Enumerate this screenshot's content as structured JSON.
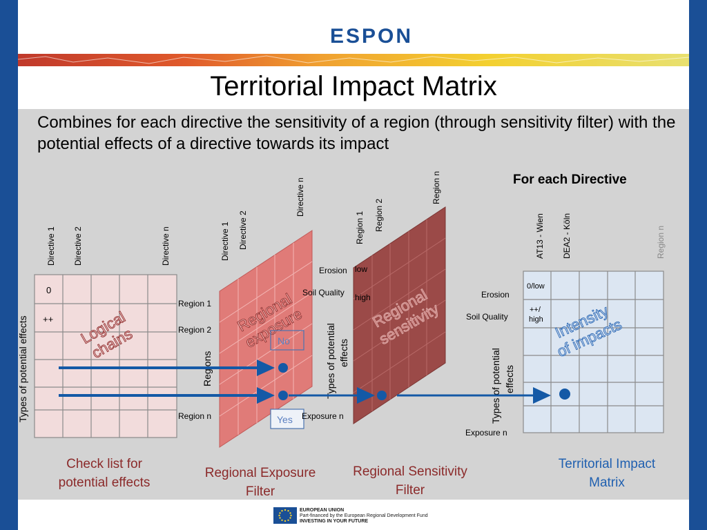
{
  "header": {
    "logo_text": "ESPON"
  },
  "title": "Territorial Impact Matrix",
  "subtitle": "Combines for each directive the sensitivity of a region (through sensitivity filter) with the potential effects of a directive towards its impact",
  "checklist": {
    "col_headers": [
      "Directive 1",
      "Directive 2",
      "Directive n"
    ],
    "row_label": "Types of potential effects",
    "cells": [
      "0",
      "++"
    ],
    "overlay": [
      "Logical",
      "chains"
    ],
    "caption": [
      "Check list for",
      "potential effects"
    ]
  },
  "exposure": {
    "col_headers": [
      "Directive 1",
      "Directive 2",
      "Directive n"
    ],
    "row_labels": [
      "Region 1",
      "Region 2",
      "Region n"
    ],
    "axis_label": "Regions",
    "overlay": [
      "Regional",
      "exposure"
    ],
    "no_label": "No",
    "yes_label": "Yes",
    "caption": [
      "Regional Exposure",
      "Filter"
    ]
  },
  "sensitivity": {
    "col_headers": [
      "Region 1",
      "Region 2",
      "Region n"
    ],
    "row_labels": [
      "Erosion",
      "Soil Quality",
      "Exposure n"
    ],
    "values": [
      "low",
      "high"
    ],
    "axis_label": [
      "Types of potential",
      "effects"
    ],
    "overlay": [
      "Regional",
      "sensitivity"
    ],
    "caption": [
      "Regional Sensitivity",
      "Filter"
    ]
  },
  "matrix": {
    "heading": "For each Directive",
    "col_headers": [
      "AT13 - Wien",
      "DEA2 - Köln",
      "Region n"
    ],
    "row_labels": [
      "Erosion",
      "Soil Quality",
      "Exposure n"
    ],
    "cells": [
      "0/low",
      "++/",
      "high"
    ],
    "axis_label": [
      "Types of potential",
      "effects"
    ],
    "overlay": [
      "Intensity",
      "of impacts"
    ],
    "caption": [
      "Territorial Impact",
      "Matrix"
    ]
  },
  "footer": {
    "lines": [
      "EUROPEAN UNION",
      "Part-financed by the European Regional Development Fund",
      "INVESTING IN YOUR FUTURE"
    ]
  },
  "colors": {
    "frame": "#1a4f96",
    "checklist_fill": "#f2dcdc",
    "exposure_fill": "#e07b78",
    "sensitivity_fill": "#9b4a48",
    "matrix_fill": "#dce6f2",
    "arrow": "#1459a6",
    "caption_dark_red": "#8b2a2a",
    "caption_blue": "#2060b0"
  }
}
